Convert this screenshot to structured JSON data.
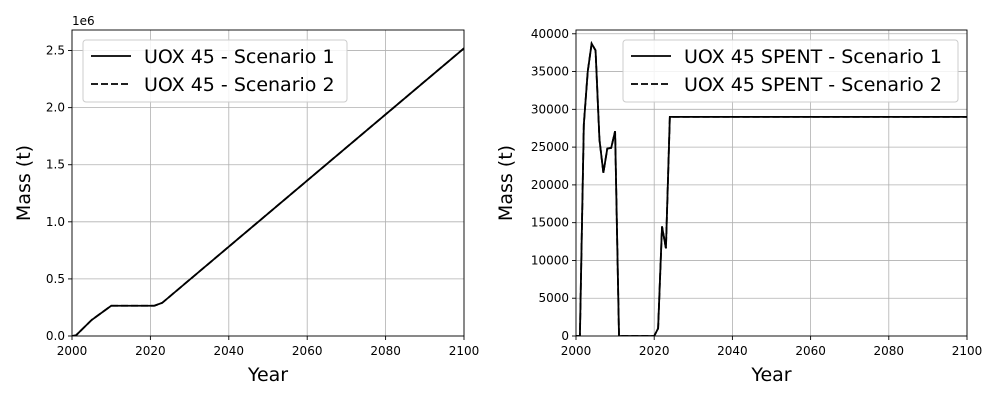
{
  "chart_data": [
    {
      "type": "line",
      "xlabel": "Year",
      "ylabel": "Mass (t)",
      "y_offset_label": "1e6",
      "xlim": [
        2000,
        2100
      ],
      "ylim": [
        0,
        2.68
      ],
      "x_ticks": [
        2000,
        2020,
        2040,
        2060,
        2080,
        2100
      ],
      "x_tick_labels": [
        "2000",
        "2020",
        "2040",
        "2060",
        "2080",
        "2100"
      ],
      "y_ticks": [
        0,
        0.5,
        1.0,
        1.5,
        2.0,
        2.5
      ],
      "y_tick_labels": [
        "0.0",
        "0.5",
        "1.0",
        "1.5",
        "2.0",
        "2.5"
      ],
      "grid": true,
      "legend_position": "top-left",
      "series": [
        {
          "name": "UOX 45 - Scenario 1",
          "line_style": "solid",
          "color": "#000000",
          "x": [
            2000,
            2001,
            2005,
            2010,
            2020,
            2021,
            2023,
            2100
          ],
          "y": [
            0,
            0.005,
            0.14,
            0.265,
            0.265,
            0.265,
            0.29,
            2.52
          ]
        },
        {
          "name": "UOX 45 - Scenario 2",
          "line_style": "dashed",
          "color": "#000000",
          "x": [
            2000,
            2001,
            2005,
            2010,
            2020,
            2021,
            2023,
            2100
          ],
          "y": [
            0,
            0.005,
            0.14,
            0.265,
            0.265,
            0.265,
            0.29,
            2.52
          ]
        }
      ]
    },
    {
      "type": "line",
      "xlabel": "Year",
      "ylabel": "Mass (t)",
      "xlim": [
        2000,
        2100
      ],
      "ylim": [
        0,
        40500
      ],
      "x_ticks": [
        2000,
        2020,
        2040,
        2060,
        2080,
        2100
      ],
      "x_tick_labels": [
        "2000",
        "2020",
        "2040",
        "2060",
        "2080",
        "2100"
      ],
      "y_ticks": [
        0,
        5000,
        10000,
        15000,
        20000,
        25000,
        30000,
        35000,
        40000
      ],
      "y_tick_labels": [
        "0",
        "5000",
        "10000",
        "15000",
        "20000",
        "25000",
        "30000",
        "35000",
        "40000"
      ],
      "grid": true,
      "legend_position": "top-right",
      "series": [
        {
          "name": "UOX 45 SPENT - Scenario 1",
          "line_style": "solid",
          "color": "#000000",
          "x": [
            2000,
            2001,
            2002,
            2003,
            2004,
            2005,
            2006,
            2007,
            2008,
            2009,
            2010,
            2011,
            2012,
            2020,
            2021,
            2022,
            2023,
            2024,
            2100
          ],
          "y": [
            0,
            0,
            28000,
            35000,
            38700,
            37800,
            26000,
            21600,
            24800,
            24900,
            27100,
            0,
            0,
            0,
            1000,
            14500,
            11600,
            29000,
            29000
          ]
        },
        {
          "name": "UOX 45 SPENT - Scenario 2",
          "line_style": "dashed",
          "color": "#000000",
          "x": [
            2000,
            2001,
            2002,
            2003,
            2004,
            2005,
            2006,
            2007,
            2008,
            2009,
            2010,
            2011,
            2012,
            2020,
            2021,
            2022,
            2023,
            2024,
            2100
          ],
          "y": [
            0,
            0,
            28000,
            35000,
            38700,
            37800,
            26000,
            21600,
            24800,
            24900,
            27100,
            0,
            0,
            0,
            1000,
            14500,
            11600,
            29000,
            29000
          ]
        }
      ]
    }
  ]
}
